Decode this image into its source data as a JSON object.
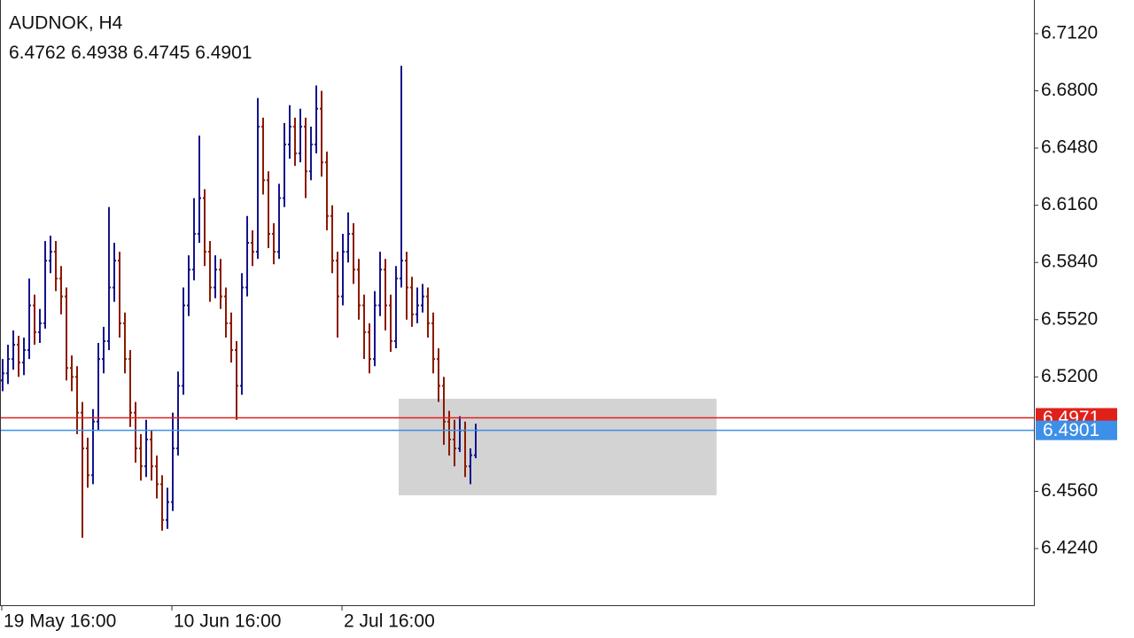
{
  "chart_data": {
    "type": "ohlc",
    "title": "AUDNOK, H4",
    "categories": [
      "19 May 16:00",
      null,
      null,
      null,
      null,
      null,
      null,
      null,
      null,
      null,
      null,
      null,
      null,
      null,
      null,
      null,
      null,
      null,
      null,
      null,
      null,
      null,
      null,
      null,
      null,
      null,
      null,
      null,
      null,
      null,
      null,
      null,
      "10 Jun 16:00",
      null,
      null,
      null,
      null,
      null,
      null,
      null,
      null,
      null,
      null,
      null,
      null,
      null,
      null,
      null,
      null,
      null,
      null,
      null,
      null,
      null,
      null,
      null,
      null,
      null,
      null,
      null,
      null,
      null,
      null,
      null,
      "2 Jul 16:00",
      null,
      null,
      null,
      null,
      null,
      null,
      null,
      null,
      null,
      null,
      null,
      null,
      null,
      null,
      null,
      null,
      null,
      null,
      null,
      null,
      null,
      null,
      null,
      null,
      null
    ],
    "open": [
      6.518,
      6.522,
      6.53,
      6.538,
      6.528,
      6.535,
      6.56,
      6.545,
      6.55,
      6.585,
      6.59,
      6.575,
      6.565,
      6.525,
      6.52,
      6.5,
      6.48,
      6.465,
      6.495,
      6.53,
      6.54,
      6.57,
      6.585,
      6.55,
      6.53,
      6.5,
      6.48,
      6.47,
      6.485,
      6.47,
      6.46,
      6.44,
      6.45,
      6.48,
      6.515,
      6.56,
      6.58,
      6.6,
      6.62,
      6.59,
      6.57,
      6.58,
      6.565,
      6.55,
      6.535,
      6.515,
      6.57,
      6.595,
      6.59,
      6.66,
      6.63,
      6.6,
      6.59,
      6.62,
      6.65,
      6.66,
      6.645,
      6.66,
      6.635,
      6.65,
      6.67,
      6.64,
      6.61,
      6.585,
      6.565,
      6.59,
      6.6,
      6.58,
      6.56,
      6.545,
      6.53,
      6.56,
      6.58,
      6.56,
      6.54,
      6.575,
      6.585,
      6.57,
      6.555,
      6.56,
      6.565,
      6.55,
      6.53,
      6.515,
      6.495,
      6.485,
      6.48,
      6.49,
      6.47,
      6.4762
    ],
    "high": [
      6.53,
      6.538,
      6.546,
      6.543,
      6.542,
      6.575,
      6.566,
      6.558,
      6.596,
      6.599,
      6.596,
      6.582,
      6.57,
      6.532,
      6.526,
      6.506,
      6.486,
      6.502,
      6.539,
      6.548,
      6.615,
      6.595,
      6.59,
      6.556,
      6.535,
      6.506,
      6.488,
      6.496,
      6.49,
      6.476,
      6.465,
      6.458,
      6.5,
      6.523,
      6.57,
      6.588,
      6.62,
      6.655,
      6.625,
      6.596,
      6.588,
      6.586,
      6.57,
      6.556,
      6.54,
      6.578,
      6.61,
      6.602,
      6.676,
      6.665,
      6.635,
      6.606,
      6.628,
      6.662,
      6.672,
      6.665,
      6.67,
      6.665,
      6.66,
      6.683,
      6.68,
      6.646,
      6.616,
      6.59,
      6.6,
      6.612,
      6.606,
      6.586,
      6.566,
      6.55,
      6.568,
      6.59,
      6.586,
      6.566,
      6.582,
      6.694,
      6.59,
      6.576,
      6.57,
      6.572,
      6.57,
      6.556,
      6.536,
      6.52,
      6.501,
      6.496,
      6.498,
      6.495,
      6.48,
      6.4938
    ],
    "low": [
      6.512,
      6.516,
      6.524,
      6.52,
      6.521,
      6.53,
      6.538,
      6.539,
      6.547,
      6.578,
      6.568,
      6.555,
      6.518,
      6.512,
      6.488,
      6.43,
      6.458,
      6.46,
      6.49,
      6.522,
      6.535,
      6.562,
      6.542,
      6.522,
      6.492,
      6.472,
      6.462,
      6.464,
      6.462,
      6.452,
      6.434,
      6.435,
      6.445,
      6.476,
      6.51,
      6.554,
      6.574,
      6.595,
      6.582,
      6.562,
      6.564,
      6.558,
      6.542,
      6.528,
      6.496,
      6.51,
      6.565,
      6.582,
      6.586,
      6.622,
      6.592,
      6.583,
      6.586,
      6.615,
      6.642,
      6.638,
      6.64,
      6.62,
      6.63,
      6.645,
      6.632,
      6.602,
      6.578,
      6.542,
      6.56,
      6.584,
      6.572,
      6.552,
      6.53,
      6.522,
      6.526,
      6.554,
      6.546,
      6.534,
      6.536,
      6.57,
      6.552,
      6.548,
      6.55,
      6.556,
      6.542,
      6.522,
      6.506,
      6.482,
      6.476,
      6.47,
      6.478,
      6.464,
      6.46,
      6.4745
    ],
    "close": [
      6.522,
      6.53,
      6.538,
      6.528,
      6.535,
      6.56,
      6.545,
      6.55,
      6.585,
      6.59,
      6.575,
      6.565,
      6.525,
      6.52,
      6.5,
      6.48,
      6.465,
      6.495,
      6.53,
      6.54,
      6.57,
      6.585,
      6.55,
      6.53,
      6.5,
      6.48,
      6.47,
      6.485,
      6.47,
      6.46,
      6.44,
      6.45,
      6.48,
      6.515,
      6.56,
      6.58,
      6.6,
      6.62,
      6.59,
      6.57,
      6.58,
      6.565,
      6.55,
      6.535,
      6.515,
      6.57,
      6.595,
      6.59,
      6.66,
      6.63,
      6.6,
      6.59,
      6.62,
      6.65,
      6.66,
      6.645,
      6.66,
      6.635,
      6.65,
      6.67,
      6.64,
      6.61,
      6.585,
      6.565,
      6.59,
      6.6,
      6.58,
      6.56,
      6.545,
      6.53,
      6.56,
      6.58,
      6.56,
      6.54,
      6.575,
      6.585,
      6.57,
      6.555,
      6.56,
      6.565,
      6.55,
      6.53,
      6.515,
      6.495,
      6.485,
      6.48,
      6.49,
      6.47,
      6.4762,
      6.4901
    ],
    "up_color": "#14148c",
    "down_color": "#8b1a00",
    "ylim": [
      6.3923,
      6.7308
    ],
    "yticks": [
      {
        "value": 6.712,
        "label": "6.7120"
      },
      {
        "value": 6.68,
        "label": "6.6800"
      },
      {
        "value": 6.648,
        "label": "6.6480"
      },
      {
        "value": 6.616,
        "label": "6.6160"
      },
      {
        "value": 6.584,
        "label": "6.5840"
      },
      {
        "value": 6.552,
        "label": "6.5520"
      },
      {
        "value": 6.52,
        "label": "6.5200"
      },
      {
        "value": 6.456,
        "label": "6.4560"
      },
      {
        "value": 6.424,
        "label": "6.4240"
      }
    ],
    "lines": [
      {
        "value": 6.4971,
        "color": "#e0201a"
      },
      {
        "value": 6.4901,
        "color": "#3d8fe8"
      }
    ],
    "zone": {
      "x": [
        74.5,
        134.3
      ],
      "y": [
        6.4538,
        6.5078
      ],
      "color": "#d3d3d3"
    }
  }
}
